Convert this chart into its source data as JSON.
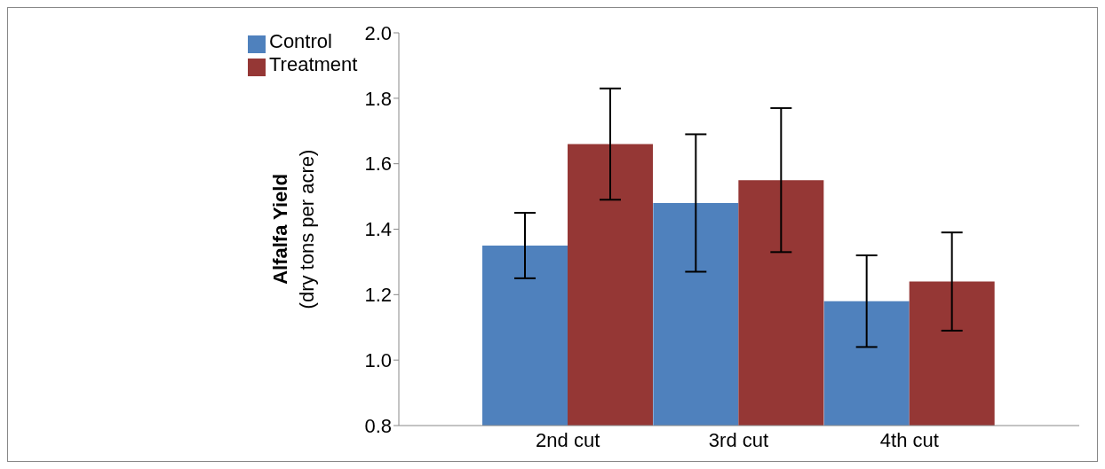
{
  "chart_data": {
    "type": "bar",
    "ylabel": "Alfalfa Yield\n(dry tons per acre)",
    "categories": [
      "2nd cut",
      "3rd cut",
      "4th cut"
    ],
    "series": [
      {
        "name": "Control",
        "color": "#4f81bd",
        "values": [
          1.35,
          1.48,
          1.18
        ],
        "errors": [
          [
            1.25,
            1.45
          ],
          [
            1.27,
            1.69
          ],
          [
            1.04,
            1.32
          ]
        ]
      },
      {
        "name": "Treatment",
        "color": "#953735",
        "values": [
          1.66,
          1.55,
          1.24
        ],
        "errors": [
          [
            1.49,
            1.83
          ],
          [
            1.33,
            1.77
          ],
          [
            1.09,
            1.39
          ]
        ]
      }
    ],
    "ylim": [
      0.8,
      2.0
    ],
    "yticks": [
      0.8,
      {
        "value": 1.0,
        "label": "1.0"
      },
      1.2,
      1.4,
      1.6,
      1.8,
      {
        "value": 2.0,
        "label": "2.0"
      }
    ],
    "grid": false,
    "legend": "top left"
  }
}
